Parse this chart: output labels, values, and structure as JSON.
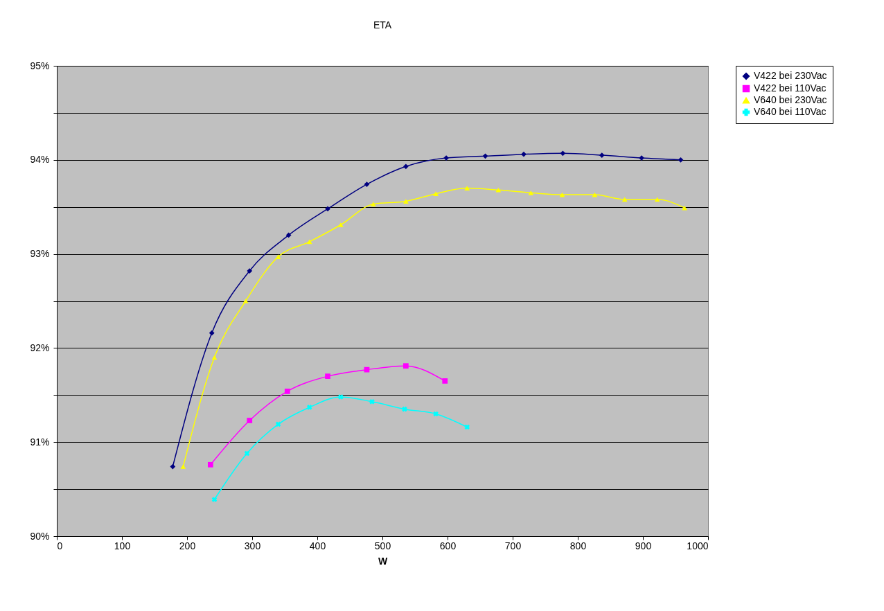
{
  "chart_data": {
    "type": "line",
    "title": "ETA",
    "xlabel": "W",
    "legend": "right",
    "grid": "y",
    "line_style": "solid",
    "xlim": [
      0,
      1000
    ],
    "xticks": [
      0,
      100,
      200,
      300,
      400,
      500,
      600,
      700,
      800,
      900,
      1000
    ],
    "ylim": [
      90,
      95
    ],
    "yticks": [
      {
        "value": 90,
        "label": "90%"
      },
      {
        "value": 90.5,
        "label": null
      },
      {
        "value": 91,
        "label": "91%"
      },
      {
        "value": 91.5,
        "label": null
      },
      {
        "value": 92,
        "label": "92%"
      },
      {
        "value": 92.5,
        "label": null
      },
      {
        "value": 93,
        "label": "93%"
      },
      {
        "value": 93.5,
        "label": null
      },
      {
        "value": 94,
        "label": "94%"
      },
      {
        "value": 94.5,
        "label": null
      },
      {
        "value": 95,
        "label": "95%"
      }
    ],
    "series": [
      {
        "name": "V422 bei 230Vac",
        "color": "#000080",
        "marker": "diamond",
        "x": [
          178,
          238,
          296,
          356,
          416,
          476,
          536,
          598,
          658,
          717,
          777,
          837,
          898,
          958
        ],
        "values": [
          90.74,
          92.16,
          92.82,
          93.2,
          93.48,
          93.74,
          93.93,
          94.02,
          94.04,
          94.06,
          94.07,
          94.05,
          94.02,
          94.0
        ]
      },
      {
        "name": "V422 bei 110Vac",
        "color": "#ff00ff",
        "marker": "square",
        "x": [
          236,
          296,
          354,
          416,
          476,
          536,
          596
        ],
        "values": [
          90.76,
          91.23,
          91.54,
          91.7,
          91.77,
          91.81,
          91.65
        ]
      },
      {
        "name": "V640 bei 230Vac",
        "color": "#ffff00",
        "marker": "triangle",
        "x": [
          194,
          242,
          290,
          340,
          388,
          436,
          486,
          536,
          582,
          630,
          678,
          728,
          776,
          826,
          872,
          922,
          964
        ],
        "values": [
          90.74,
          91.9,
          92.5,
          92.97,
          93.13,
          93.31,
          93.53,
          93.56,
          93.64,
          93.7,
          93.68,
          93.65,
          93.63,
          93.63,
          93.58,
          93.58,
          93.49
        ]
      },
      {
        "name": "V640 bei 110Vac",
        "color": "#00ffff",
        "marker": "cross",
        "x": [
          242,
          292,
          340,
          388,
          436,
          484,
          534,
          582,
          630
        ],
        "values": [
          90.39,
          90.88,
          91.19,
          91.37,
          91.48,
          91.43,
          91.35,
          91.3,
          91.16
        ]
      }
    ]
  }
}
